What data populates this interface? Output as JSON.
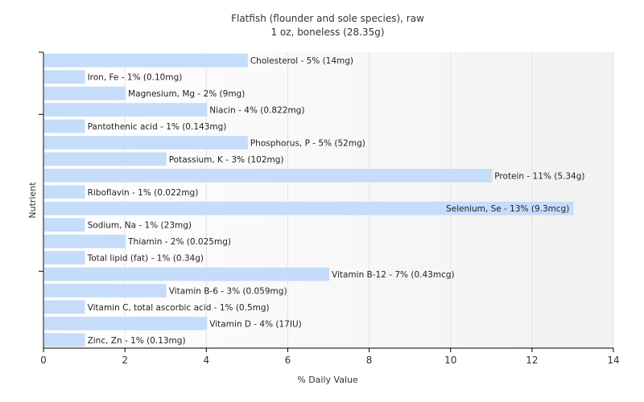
{
  "chart_data": {
    "type": "bar",
    "orientation": "horizontal",
    "title": "Flatfish (flounder and sole species), raw",
    "subtitle": "1 oz, boneless (28.35g)",
    "xlabel": "% Daily Value",
    "ylabel": "Nutrient",
    "xlim": [
      0,
      14
    ],
    "xticks": [
      "0",
      "2",
      "4",
      "6",
      "8",
      "10",
      "12",
      "14"
    ],
    "grid": true,
    "bar_color": "#c6dcfb",
    "categories": [
      "Cholesterol",
      "Iron, Fe",
      "Magnesium, Mg",
      "Niacin",
      "Pantothenic acid",
      "Phosphorus, P",
      "Potassium, K",
      "Protein",
      "Riboflavin",
      "Selenium, Se",
      "Sodium, Na",
      "Thiamin",
      "Total lipid (fat)",
      "Vitamin B-12",
      "Vitamin B-6",
      "Vitamin C, total ascorbic acid",
      "Vitamin D",
      "Zinc, Zn"
    ],
    "values": [
      5,
      1,
      2,
      4,
      1,
      5,
      3,
      11,
      1,
      13,
      1,
      2,
      1,
      7,
      3,
      1,
      4,
      1
    ],
    "labels": [
      "Cholesterol - 5% (14mg)",
      "Iron, Fe - 1% (0.10mg)",
      "Magnesium, Mg - 2% (9mg)",
      "Niacin - 4% (0.822mg)",
      "Pantothenic acid - 1% (0.143mg)",
      "Phosphorus, P - 5% (52mg)",
      "Potassium, K - 3% (102mg)",
      "Protein - 11% (5.34g)",
      "Riboflavin - 1% (0.022mg)",
      "Selenium, Se - 13% (9.3mcg)",
      "Sodium, Na - 1% (23mg)",
      "Thiamin - 2% (0.025mg)",
      "Total lipid (fat) - 1% (0.34g)",
      "Vitamin B-12 - 7% (0.43mcg)",
      "Vitamin B-6 - 3% (0.059mg)",
      "Vitamin C, total ascorbic acid - 1% (0.5mg)",
      "Vitamin D - 4% (17IU)",
      "Zinc, Zn - 1% (0.13mg)"
    ]
  }
}
